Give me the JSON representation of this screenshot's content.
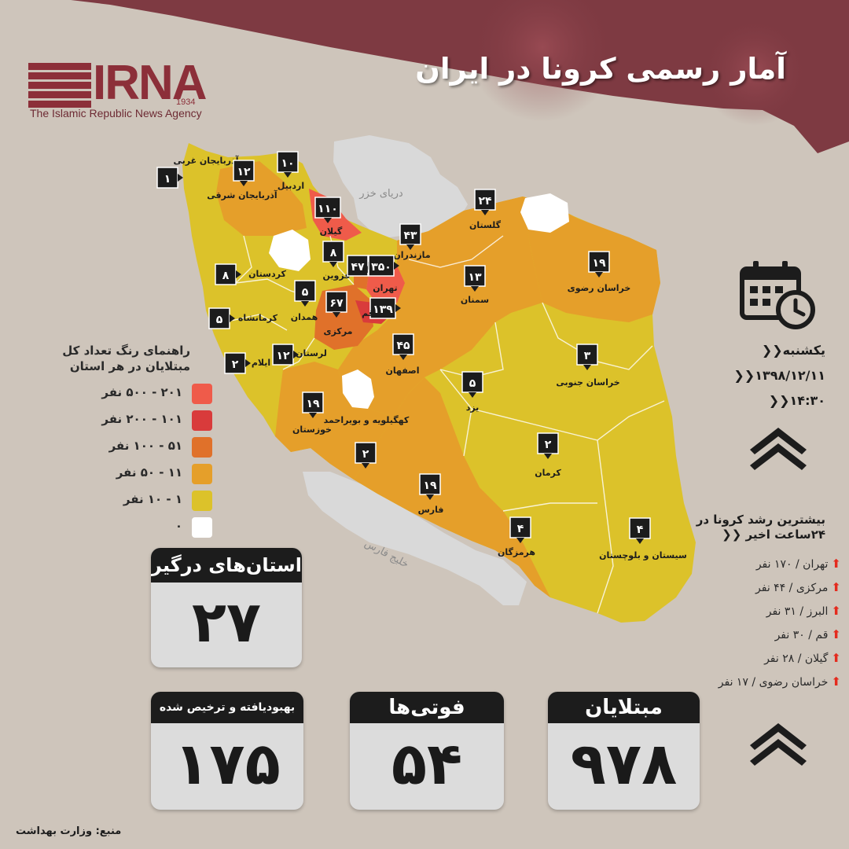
{
  "header": {
    "title": "آمار رسمی کرونا در ایران",
    "bg_color": "#7e3a42"
  },
  "logo": {
    "brand": "IRNA",
    "year": "1934",
    "subtitle": "The Islamic Republic News Agency"
  },
  "info": {
    "day": "یکشنبه",
    "date": "۱۳۹۸/۱۲/۱۱",
    "time": "۱۴:۳۰"
  },
  "legend": {
    "title": "راهنمای رنگ تعداد کل مبتلایان در هر استان",
    "items": [
      {
        "label": "۲۰۱ - ۵۰۰ نفر",
        "color": "#ef5b4a"
      },
      {
        "label": "۱۰۱ - ۲۰۰ نفر",
        "color": "#d93b3b"
      },
      {
        "label": "۵۱ - ۱۰۰ نفر",
        "color": "#e0712a"
      },
      {
        "label": "۱۱ - ۵۰ نفر",
        "color": "#e59f2a"
      },
      {
        "label": "۱ - ۱۰ نفر",
        "color": "#dcc22a"
      },
      {
        "label": "۰",
        "color": "#ffffff"
      }
    ]
  },
  "map": {
    "sea_north": "دریای خزر",
    "sea_south": "خلیج فارس",
    "provinces": [
      {
        "name": "آذربایجان غربی",
        "count": "۱"
      },
      {
        "name": "آذربایجان شرقی",
        "count": "۱۲"
      },
      {
        "name": "اردبیل",
        "count": "۱۰"
      },
      {
        "name": "گیلان",
        "count": "۱۱۰"
      },
      {
        "name": "مازندران",
        "count": "۴۳"
      },
      {
        "name": "گلستان",
        "count": "۲۴"
      },
      {
        "name": "خراسان رضوی",
        "count": "۱۹"
      },
      {
        "name": "قزوین",
        "count": "۸"
      },
      {
        "name": "البرز",
        "count": "۴۷"
      },
      {
        "name": "تهران",
        "count": "۳۵۰"
      },
      {
        "name": "سمنان",
        "count": "۱۳"
      },
      {
        "name": "کردستان",
        "count": "۸"
      },
      {
        "name": "همدان",
        "count": "۵"
      },
      {
        "name": "مرکزی",
        "count": "۶۷"
      },
      {
        "name": "قم",
        "count": "۱۳۹"
      },
      {
        "name": "کرمانشاه",
        "count": "۵"
      },
      {
        "name": "لرستان",
        "count": "۱۲"
      },
      {
        "name": "ایلام",
        "count": "۲"
      },
      {
        "name": "اصفهان",
        "count": "۴۵"
      },
      {
        "name": "خراسان جنوبی",
        "count": "۳"
      },
      {
        "name": "یزد",
        "count": "۵"
      },
      {
        "name": "خوزستان",
        "count": "۱۹"
      },
      {
        "name": "کهگیلویه و بویراحمد",
        "count": "۲"
      },
      {
        "name": "کرمان",
        "count": "۲"
      },
      {
        "name": "فارس",
        "count": "۱۹"
      },
      {
        "name": "هرمزگان",
        "count": "۴"
      },
      {
        "name": "سیستان و بلوچستان",
        "count": "۴"
      }
    ]
  },
  "stats": {
    "provinces_affected": {
      "label": "استان‌های درگیر",
      "value": "۲۷"
    },
    "recovered": {
      "label": "بهبودیافته و ترخیص شده",
      "value": "۱۷۵"
    },
    "deaths": {
      "label": "فوتی‌ها",
      "value": "۵۴"
    },
    "infected": {
      "label": "مبتلایان",
      "value": "۹۷۸"
    }
  },
  "growth": {
    "title": "بیشترین رشد کرونا در ۲۴ساعت اخیر",
    "items": [
      {
        "name": "تهران",
        "value": "۱۷۰ نفر"
      },
      {
        "name": "مرکزی",
        "value": "۴۴ نفر"
      },
      {
        "name": "البرز",
        "value": "۳۱ نفر"
      },
      {
        "name": "قم",
        "value": "۳۰ نفر"
      },
      {
        "name": "گیلان",
        "value": "۲۸ نفر"
      },
      {
        "name": "خراسان رضوی",
        "value": "۱۷ نفر"
      }
    ]
  },
  "source": "منبع: وزارت بهداشت"
}
